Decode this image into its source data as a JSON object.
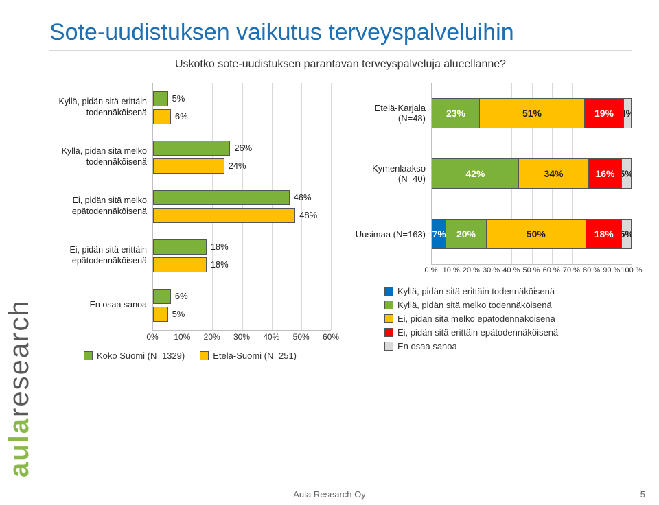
{
  "title": "Sote-uudistuksen vaikutus terveyspalveluihin",
  "subtitle": "Uskotko sote-uudistuksen parantavan terveyspalveluja alueellanne?",
  "side_label_accent": "aula",
  "side_label_rest": "research",
  "footer": "Aula Research Oy",
  "page_number": "5",
  "left_chart": {
    "xmax": 60,
    "xtick_step": 10,
    "categories": [
      "Kyllä, pidän sitä erittäin todennäköisenä",
      "Kyllä, pidän sitä melko todennäköisenä",
      "Ei, pidän sitä melko epätodennäköisenä",
      "Ei, pidän sitä erittäin epätodennäköisenä",
      "En osaa sanoa"
    ],
    "series": [
      {
        "name": "Koko Suomi (N=1329)",
        "color": "#7db23a",
        "values": [
          5,
          26,
          46,
          18,
          6
        ]
      },
      {
        "name": "Etelä-Suomi (N=251)",
        "color": "#ffc000",
        "values": [
          6,
          24,
          48,
          18,
          5
        ]
      }
    ],
    "label_fontsize": 12.5,
    "axis_fontsize": 12,
    "value_fontsize": 13
  },
  "right_chart": {
    "xmax": 100,
    "xtick_step": 10,
    "tick_suffix": " %",
    "categories": [
      "Etelä-Karjala (N=48)",
      "Kymenlaakso (N=40)",
      "Uusimaa (N=163)"
    ],
    "segments": [
      {
        "name": "Kyllä, pidän sitä erittäin todennäköisenä",
        "color": "#0070c0",
        "text": "light"
      },
      {
        "name": "Kyllä, pidän sitä melko todennäköisenä",
        "color": "#7db23a",
        "text": "light"
      },
      {
        "name": "Ei, pidän sitä melko epätodennäköisenä",
        "color": "#ffc000",
        "text": "dark"
      },
      {
        "name": "Ei, pidän sitä erittäin epätodennäköisenä",
        "color": "#ff0000",
        "text": "light"
      },
      {
        "name": "En osaa sanoa",
        "color": "#d9d9d9",
        "text": "dark"
      }
    ],
    "rows": [
      {
        "values": [
          null,
          23,
          51,
          19,
          4
        ],
        "hidden_first": true
      },
      {
        "values": [
          null,
          42,
          34,
          16,
          5
        ],
        "hidden_first": true
      },
      {
        "values": [
          7,
          20,
          50,
          18,
          5
        ],
        "hidden_first": false
      }
    ],
    "label_fontsize": 13,
    "axis_fontsize": 11,
    "value_fontsize": 14
  }
}
